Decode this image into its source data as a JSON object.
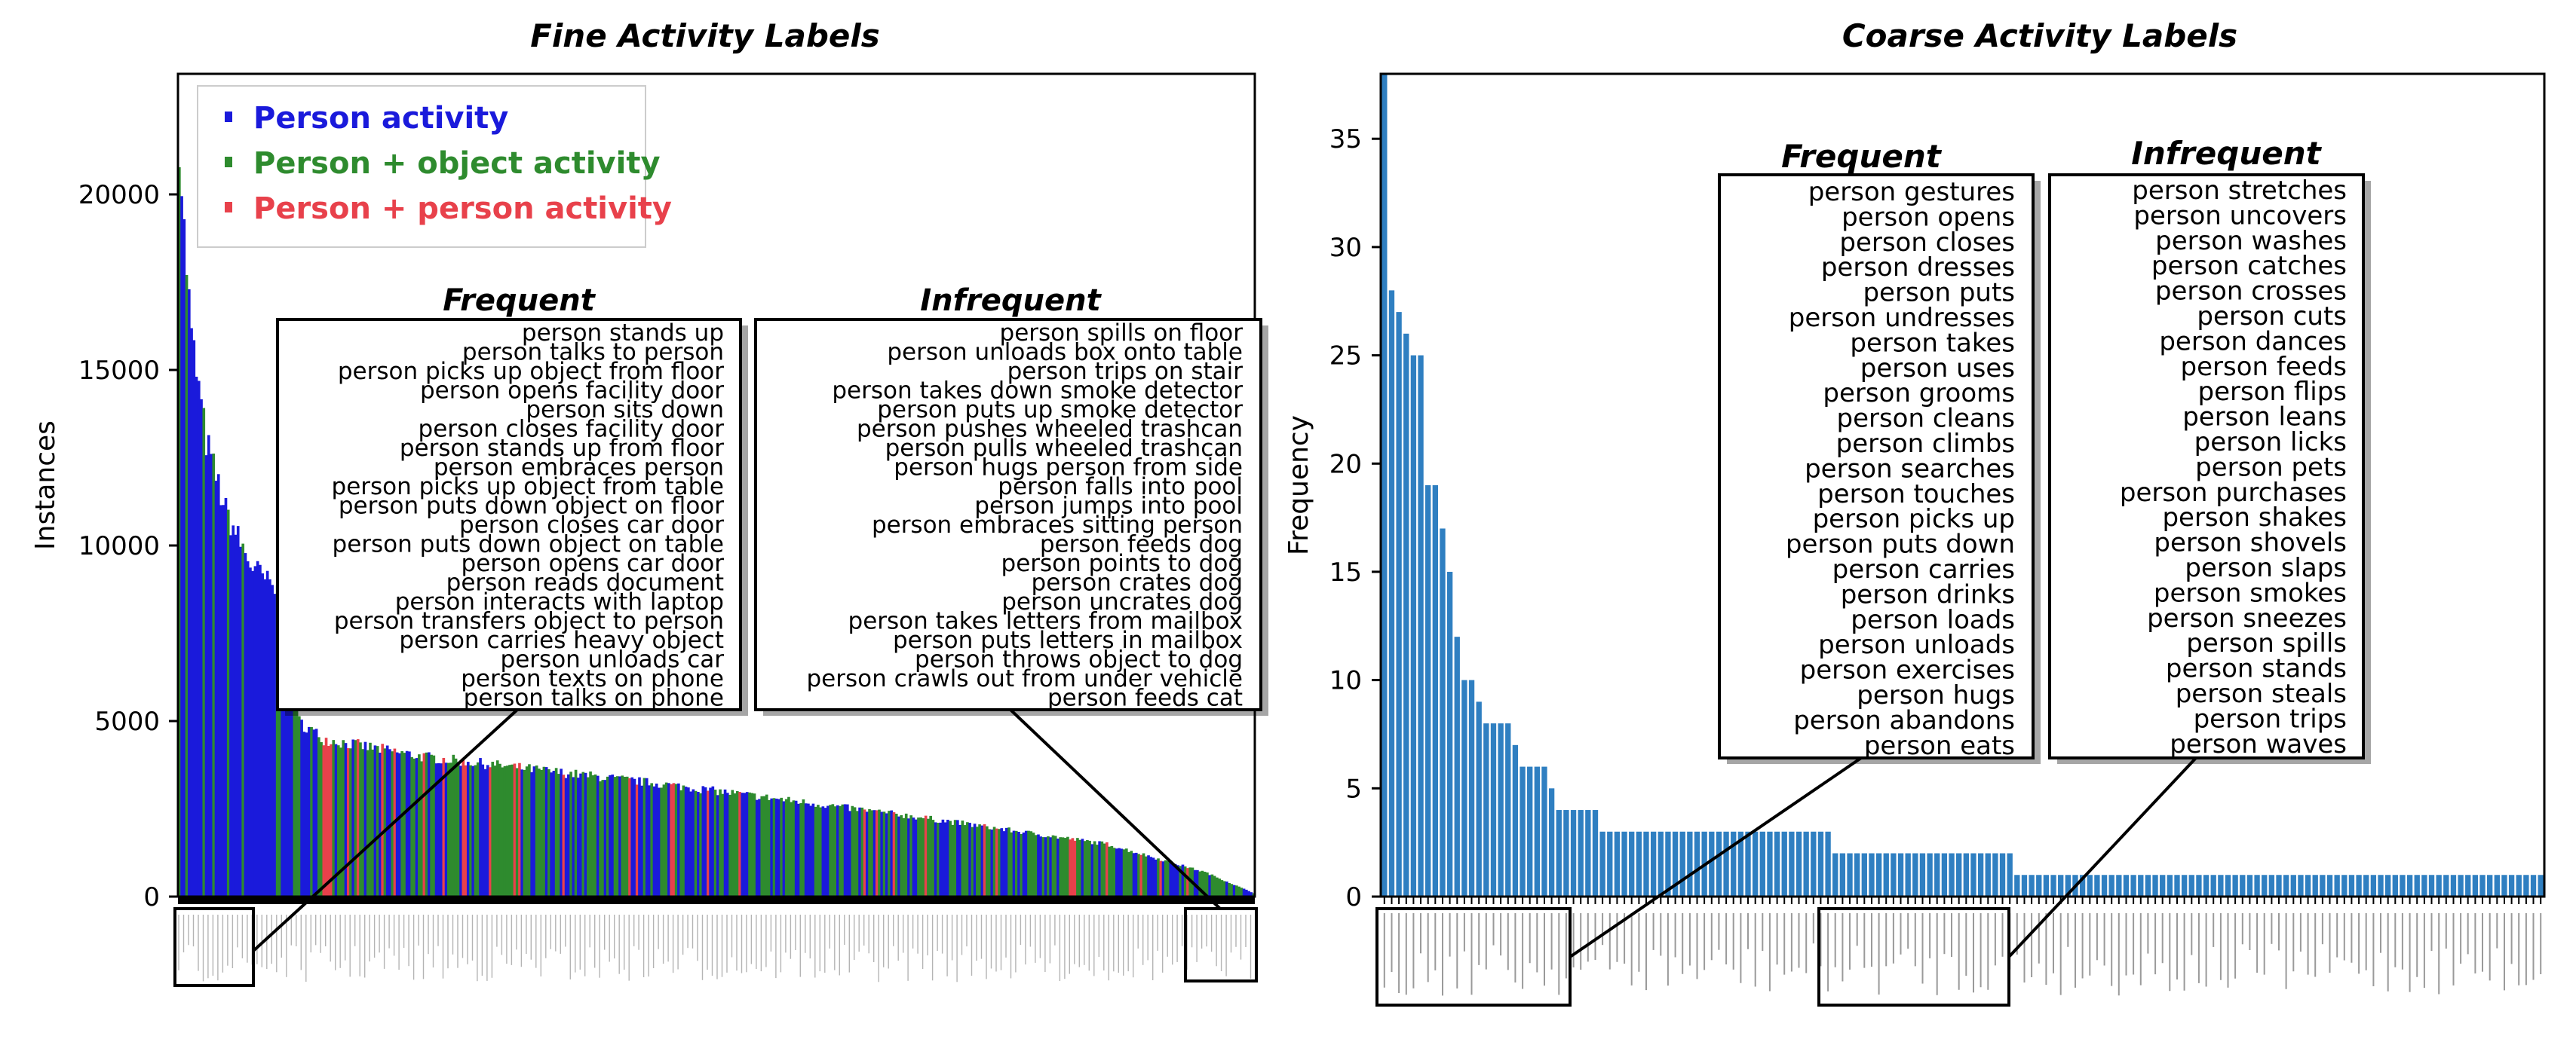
{
  "left_chart": {
    "title": "Fine Activity Labels",
    "ylabel": "Instances",
    "yticks": [
      "0",
      "5000",
      "10000",
      "15000",
      "20000"
    ],
    "legend": [
      {
        "label": "Person activity",
        "color": "#1a1adb"
      },
      {
        "label": "Person + object activity",
        "color": "#2e8b2e"
      },
      {
        "label": "Person + person activity",
        "color": "#e8414b"
      }
    ],
    "frequent_title": "Frequent",
    "infrequent_title": "Infrequent",
    "frequent": [
      "person stands up",
      "person talks to person",
      "person picks up object from floor",
      "person opens facility door",
      "person sits down",
      "person closes facility door",
      "person stands up from floor",
      "person embraces person",
      "person picks up object from table",
      "person puts down object on floor",
      "person closes car door",
      "person puts down object on table",
      "person opens car door",
      "person reads document",
      "person interacts with laptop",
      "person transfers object to person",
      "person carries heavy object",
      "person unloads car",
      "person texts on phone",
      "person talks on phone"
    ],
    "infrequent": [
      "person spills on floor",
      "person unloads box onto table",
      "person trips on stair",
      "person takes down smoke detector",
      "person puts up smoke detector",
      "person pushes wheeled trashcan",
      "person pulls wheeled trashcan",
      "person hugs person from side",
      "person falls into pool",
      "person jumps into pool",
      "person embraces sitting person",
      "person feeds dog",
      "person points to dog",
      "person crates dog",
      "person uncrates dog",
      "person takes letters from mailbox",
      "person puts letters in mailbox",
      "person throws object to dog",
      "person crawls out from under vehicle",
      "person feeds cat"
    ]
  },
  "right_chart": {
    "title": "Coarse Activity Labels",
    "ylabel": "Frequency",
    "yticks": [
      "0",
      "5",
      "10",
      "15",
      "20",
      "25",
      "30",
      "35"
    ],
    "bar_color": "#2f7fc1",
    "frequent_title": "Frequent",
    "infrequent_title": "Infrequent",
    "frequent": [
      "person gestures",
      "person opens",
      "person closes",
      "person dresses",
      "person puts",
      "person undresses",
      "person takes",
      "person uses",
      "person grooms",
      "person cleans",
      "person climbs",
      "person searches",
      "person touches",
      "person picks up",
      "person puts down",
      "person carries",
      "person drinks",
      "person loads",
      "person unloads",
      "person exercises",
      "person hugs",
      "person abandons",
      "person eats"
    ],
    "infrequent": [
      "person stretches",
      "person uncovers",
      "person washes",
      "person catches",
      "person crosses",
      "person cuts",
      "person dances",
      "person feeds",
      "person flips",
      "person leans",
      "person licks",
      "person pets",
      "person purchases",
      "person shakes",
      "person shovels",
      "person slaps",
      "person smokes",
      "person sneezes",
      "person spills",
      "person stands",
      "person steals",
      "person trips",
      "person waves"
    ]
  },
  "chart_data": [
    {
      "type": "bar",
      "title": "Fine Activity Labels",
      "xlabel": "",
      "ylabel": "Instances",
      "ylim": [
        0,
        23500
      ],
      "num_categories": 440,
      "series_categories": [
        "Person activity",
        "Person + object activity",
        "Person + person activity"
      ],
      "shape": "sorted descending; head ~21700, steep drop to ~5000 near rank 20, then gradual decline to ~100",
      "key_points": [
        {
          "rank": 1,
          "value": 21700
        },
        {
          "rank": 3,
          "value": 19000
        },
        {
          "rank": 6,
          "value": 16000
        },
        {
          "rank": 12,
          "value": 13000
        },
        {
          "rank": 20,
          "value": 11000
        },
        {
          "rank": 30,
          "value": 9500
        },
        {
          "rank": 45,
          "value": 8400
        },
        {
          "rank": 50,
          "value": 5000
        },
        {
          "rank": 60,
          "value": 4500
        },
        {
          "rank": 100,
          "value": 4000
        },
        {
          "rank": 200,
          "value": 3200
        },
        {
          "rank": 300,
          "value": 2300
        },
        {
          "rank": 380,
          "value": 1500
        },
        {
          "rank": 420,
          "value": 700
        },
        {
          "rank": 440,
          "value": 100
        }
      ],
      "ylabel_ticks": [
        0,
        5000,
        10000,
        15000,
        20000
      ]
    },
    {
      "type": "bar",
      "title": "Coarse Activity Labels",
      "xlabel": "",
      "ylabel": "Frequency",
      "ylim": [
        0,
        38
      ],
      "values": [
        38,
        28,
        27,
        26,
        25,
        25,
        19,
        19,
        17,
        15,
        12,
        10,
        10,
        9,
        8,
        8,
        8,
        8,
        7,
        6,
        6,
        6,
        6,
        5,
        4,
        4,
        4,
        4,
        4,
        4,
        3,
        3,
        3,
        3,
        3,
        3,
        3,
        3,
        3,
        3,
        3,
        3,
        3,
        3,
        3,
        3,
        3,
        3,
        3,
        3,
        3,
        3,
        3,
        3,
        3,
        3,
        3,
        3,
        3,
        3,
        3,
        3,
        2,
        2,
        2,
        2,
        2,
        2,
        2,
        2,
        2,
        2,
        2,
        2,
        2,
        2,
        2,
        2,
        2,
        2,
        2,
        2,
        2,
        2,
        2,
        2,
        2,
        1,
        1,
        1,
        1,
        1,
        1,
        1,
        1,
        1,
        1,
        1,
        1,
        1,
        1,
        1,
        1,
        1,
        1,
        1,
        1,
        1,
        1,
        1,
        1,
        1,
        1,
        1,
        1,
        1,
        1,
        1,
        1,
        1,
        1,
        1,
        1,
        1,
        1,
        1,
        1,
        1,
        1,
        1,
        1,
        1,
        1,
        1,
        1,
        1,
        1,
        1,
        1,
        1,
        1,
        1,
        1,
        1,
        1,
        1,
        1,
        1,
        1,
        1,
        1,
        1,
        1,
        1,
        1,
        1,
        1,
        1,
        1,
        1
      ],
      "ylabel_ticks": [
        0,
        5,
        10,
        15,
        20,
        25,
        30,
        35
      ]
    }
  ]
}
